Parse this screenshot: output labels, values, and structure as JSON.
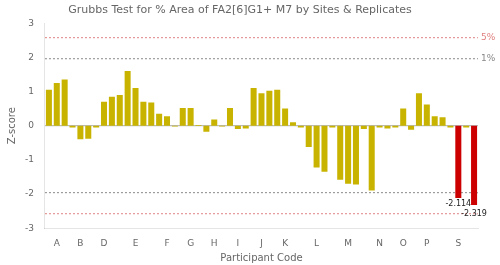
{
  "chart_data": {
    "type": "bar",
    "title": "Grubbs Test for % Area of FA2[6]G1+ M7 by Sites & Replicates",
    "x_label": "Participant Code",
    "y_label": "Z-score",
    "categories": [
      null,
      "A",
      null,
      null,
      "B",
      null,
      null,
      "D",
      null,
      null,
      null,
      "E",
      null,
      null,
      null,
      "F",
      null,
      null,
      "G",
      null,
      null,
      "H",
      null,
      null,
      "I",
      null,
      null,
      "J",
      null,
      null,
      "K",
      null,
      null,
      null,
      "L",
      null,
      null,
      null,
      "M",
      null,
      null,
      null,
      "N",
      null,
      null,
      "O",
      null,
      null,
      "P",
      null,
      null,
      null,
      "S",
      null,
      null
    ],
    "values": [
      1.05,
      1.25,
      1.35,
      -0.05,
      -0.4,
      -0.38,
      -0.05,
      0.7,
      0.85,
      0.9,
      1.6,
      1.1,
      0.7,
      0.68,
      0.35,
      0.28,
      -0.02,
      0.52,
      0.52,
      0.02,
      -0.18,
      0.18,
      -0.02,
      0.52,
      -0.1,
      -0.08,
      1.1,
      0.95,
      1.02,
      1.05,
      0.5,
      0.1,
      -0.05,
      -0.62,
      -1.22,
      -1.35,
      -0.05,
      -1.58,
      -1.7,
      -1.72,
      -0.1,
      -1.9,
      -0.05,
      -0.08,
      -0.05,
      0.5,
      -0.12,
      0.95,
      0.62,
      0.28,
      0.25,
      -0.05,
      -2.114,
      -0.05,
      -2.319
    ],
    "value_labels": [
      null,
      null,
      null,
      null,
      null,
      null,
      null,
      null,
      null,
      null,
      null,
      null,
      null,
      null,
      null,
      null,
      null,
      null,
      null,
      null,
      null,
      null,
      null,
      null,
      null,
      null,
      null,
      null,
      null,
      null,
      null,
      null,
      null,
      null,
      null,
      null,
      null,
      null,
      null,
      null,
      null,
      null,
      null,
      null,
      null,
      null,
      null,
      null,
      null,
      null,
      null,
      null,
      "-2.114",
      null,
      "-2.319"
    ],
    "data_labels": true,
    "colors": [
      "#c8b400",
      "#c8b400",
      "#c8b400",
      "#c8b400",
      "#c8b400",
      "#c8b400",
      "#c8b400",
      "#c8b400",
      "#c8b400",
      "#c8b400",
      "#c8b400",
      "#c8b400",
      "#c8b400",
      "#c8b400",
      "#c8b400",
      "#c8b400",
      "#c8b400",
      "#c8b400",
      "#c8b400",
      "#c8b400",
      "#c8b400",
      "#c8b400",
      "#c8b400",
      "#c8b400",
      "#c8b400",
      "#c8b400",
      "#c8b400",
      "#c8b400",
      "#c8b400",
      "#c8b400",
      "#c8b400",
      "#c8b400",
      "#c8b400",
      "#c8b400",
      "#c8b400",
      "#c8b400",
      "#c8b400",
      "#c8b400",
      "#c8b400",
      "#c8b400",
      "#c8b400",
      "#c8b400",
      "#c8b400",
      "#c8b400",
      "#c8b400",
      "#c8b400",
      "#c8b400",
      "#c8b400",
      "#c8b400",
      "#c8b400",
      "#c8b400",
      "#c8b400",
      "#cc0000",
      "#c8b400",
      "#cc0000"
    ],
    "hlines": [
      {
        "value": 2.576,
        "label": "5%",
        "color": "#e08080",
        "line_style": "dotted"
      },
      {
        "value": -2.576,
        "color": "#e08080",
        "line_style": "dotted"
      },
      {
        "value": 1.96,
        "label": "1%",
        "color": "#888888",
        "line_style": "dotted"
      },
      {
        "value": -1.96,
        "color": "#888888",
        "line_style": "dotted"
      },
      {
        "value": 0,
        "color": "#aaaaaa",
        "line_style": "solid"
      }
    ],
    "ylim": [
      -3,
      3
    ],
    "yticks": [
      -3,
      -2,
      -1,
      0,
      1,
      2,
      3
    ],
    "grid": false
  }
}
